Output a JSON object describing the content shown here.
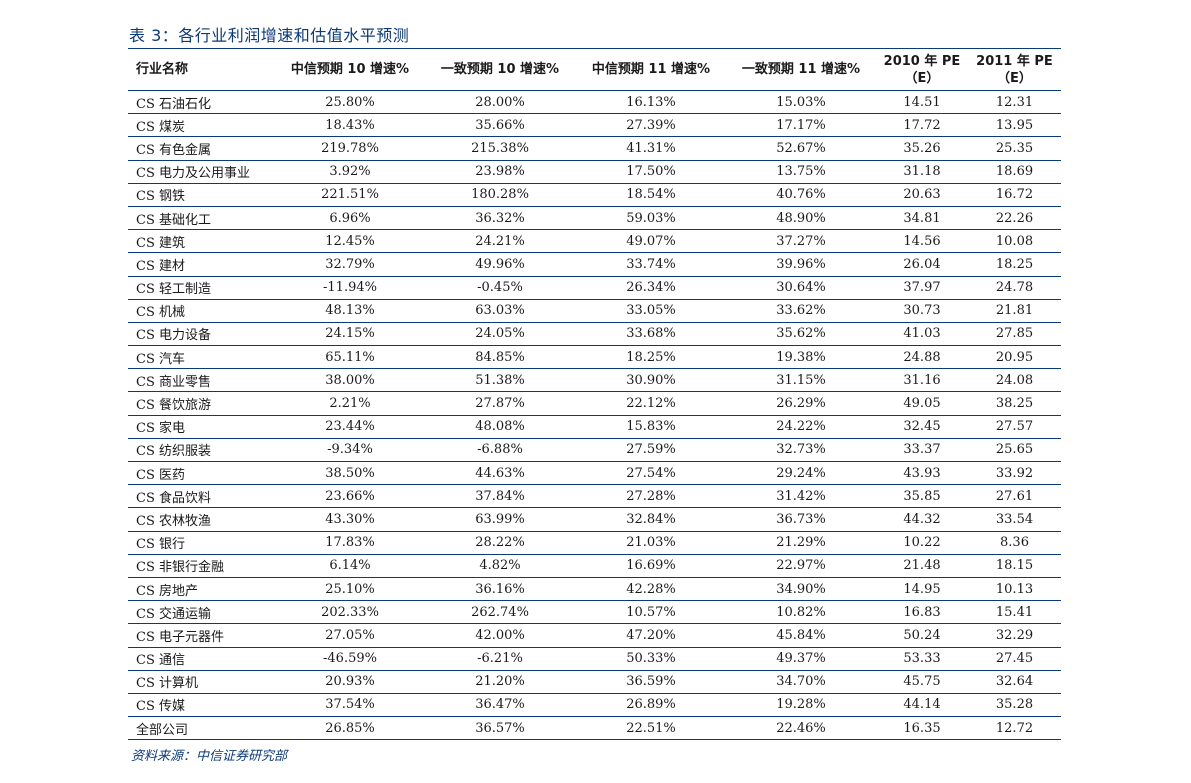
{
  "title": "表 3：各行业利润增速和估值水平预测",
  "source": "资料来源：中信证券研究部",
  "headers": [
    [
      "行业名称"
    ],
    [
      "中信预期 10 增速%"
    ],
    [
      "一致预期 10 增速%"
    ],
    [
      "中信预期 11 增速%"
    ],
    [
      "一致预期 11 增速%"
    ],
    [
      "2010 年 PE",
      "（E）"
    ],
    [
      "2011 年 PE",
      "（E）"
    ]
  ],
  "rows": [
    [
      "CS 石油石化",
      "25.80%",
      "28.00%",
      "16.13%",
      "15.03%",
      "14.51",
      "12.31"
    ],
    [
      "CS 煤炭",
      "18.43%",
      "35.66%",
      "27.39%",
      "17.17%",
      "17.72",
      "13.95"
    ],
    [
      "CS 有色金属",
      "219.78%",
      "215.38%",
      "41.31%",
      "52.67%",
      "35.26",
      "25.35"
    ],
    [
      "CS 电力及公用事业",
      "3.92%",
      "23.98%",
      "17.50%",
      "13.75%",
      "31.18",
      "18.69"
    ],
    [
      "CS 钢铁",
      "221.51%",
      "180.28%",
      "18.54%",
      "40.76%",
      "20.63",
      "16.72"
    ],
    [
      "CS 基础化工",
      "6.96%",
      "36.32%",
      "59.03%",
      "48.90%",
      "34.81",
      "22.26"
    ],
    [
      "CS 建筑",
      "12.45%",
      "24.21%",
      "49.07%",
      "37.27%",
      "14.56",
      "10.08"
    ],
    [
      "CS 建材",
      "32.79%",
      "49.96%",
      "33.74%",
      "39.96%",
      "26.04",
      "18.25"
    ],
    [
      "CS 轻工制造",
      "-11.94%",
      "-0.45%",
      "26.34%",
      "30.64%",
      "37.97",
      "24.78"
    ],
    [
      "CS 机械",
      "48.13%",
      "63.03%",
      "33.05%",
      "33.62%",
      "30.73",
      "21.81"
    ],
    [
      "CS 电力设备",
      "24.15%",
      "24.05%",
      "33.68%",
      "35.62%",
      "41.03",
      "27.85"
    ],
    [
      "CS 汽车",
      "65.11%",
      "84.85%",
      "18.25%",
      "19.38%",
      "24.88",
      "20.95"
    ],
    [
      "CS 商业零售",
      "38.00%",
      "51.38%",
      "30.90%",
      "31.15%",
      "31.16",
      "24.08"
    ],
    [
      "CS 餐饮旅游",
      "2.21%",
      "27.87%",
      "22.12%",
      "26.29%",
      "49.05",
      "38.25"
    ],
    [
      "CS 家电",
      "23.44%",
      "48.08%",
      "15.83%",
      "24.22%",
      "32.45",
      "27.57"
    ],
    [
      "CS 纺织服装",
      "-9.34%",
      "-6.88%",
      "27.59%",
      "32.73%",
      "33.37",
      "25.65"
    ],
    [
      "CS 医药",
      "38.50%",
      "44.63%",
      "27.54%",
      "29.24%",
      "43.93",
      "33.92"
    ],
    [
      "CS 食品饮料",
      "23.66%",
      "37.84%",
      "27.28%",
      "31.42%",
      "35.85",
      "27.61"
    ],
    [
      "CS 农林牧渔",
      "43.30%",
      "63.99%",
      "32.84%",
      "36.73%",
      "44.32",
      "33.54"
    ],
    [
      "CS 银行",
      "17.83%",
      "28.22%",
      "21.03%",
      "21.29%",
      "10.22",
      "8.36"
    ],
    [
      "CS 非银行金融",
      "6.14%",
      "4.82%",
      "16.69%",
      "22.97%",
      "21.48",
      "18.15"
    ],
    [
      "CS 房地产",
      "25.10%",
      "36.16%",
      "42.28%",
      "34.90%",
      "14.95",
      "10.13"
    ],
    [
      "CS 交通运输",
      "202.33%",
      "262.74%",
      "10.57%",
      "10.82%",
      "16.83",
      "15.41"
    ],
    [
      "CS 电子元器件",
      "27.05%",
      "42.00%",
      "47.20%",
      "45.84%",
      "50.24",
      "32.29"
    ],
    [
      "CS 通信",
      "-46.59%",
      "-6.21%",
      "50.33%",
      "49.37%",
      "53.33",
      "27.45"
    ],
    [
      "CS 计算机",
      "20.93%",
      "21.20%",
      "36.59%",
      "34.70%",
      "45.75",
      "32.64"
    ],
    [
      "CS 传媒",
      "37.54%",
      "36.47%",
      "26.89%",
      "19.28%",
      "44.14",
      "35.28"
    ],
    [
      "全部公司",
      "26.85%",
      "36.57%",
      "22.51%",
      "22.46%",
      "16.35",
      "12.72"
    ]
  ]
}
